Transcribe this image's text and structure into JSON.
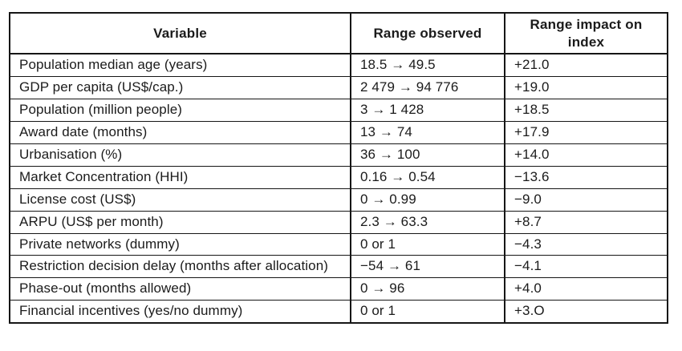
{
  "table": {
    "columns": [
      "Variable",
      "Range observed",
      "Range impact on index"
    ],
    "rows": [
      {
        "variable": "Population median age (years)",
        "range": "18.5 → 49.5",
        "impact": "+21.0"
      },
      {
        "variable": "GDP per capita (US$/cap.)",
        "range": "2 479 → 94 776",
        "impact": "+19.0"
      },
      {
        "variable": "Population (million people)",
        "range": "3 → 1 428",
        "impact": "+18.5"
      },
      {
        "variable": "Award date (months)",
        "range": "13 → 74",
        "impact": "+17.9"
      },
      {
        "variable": "Urbanisation (%)",
        "range": "36 → 100",
        "impact": "+14.0"
      },
      {
        "variable": "Market Concentration (HHI)",
        "range": "0.16 → 0.54",
        "impact": "−13.6"
      },
      {
        "variable": "License cost (US$)",
        "range": "0 → 0.99",
        "impact": "−9.0"
      },
      {
        "variable": "ARPU (US$ per month)",
        "range": "2.3 → 63.3",
        "impact": "+8.7"
      },
      {
        "variable": "Private networks (dummy)",
        "range": "0 or 1",
        "impact": "−4.3"
      },
      {
        "variable": "Restriction decision delay (months after allocation)",
        "range": "−54 → 61",
        "impact": "−4.1"
      },
      {
        "variable": "Phase-out (months allowed)",
        "range": "0 → 96",
        "impact": "+4.0"
      },
      {
        "variable": "Financial incentives (yes/no dummy)",
        "range": "0 or 1",
        "impact": "+3.O"
      }
    ],
    "colors": {
      "border": "#161616",
      "text": "#1b1b1b",
      "background": "#ffffff"
    }
  }
}
